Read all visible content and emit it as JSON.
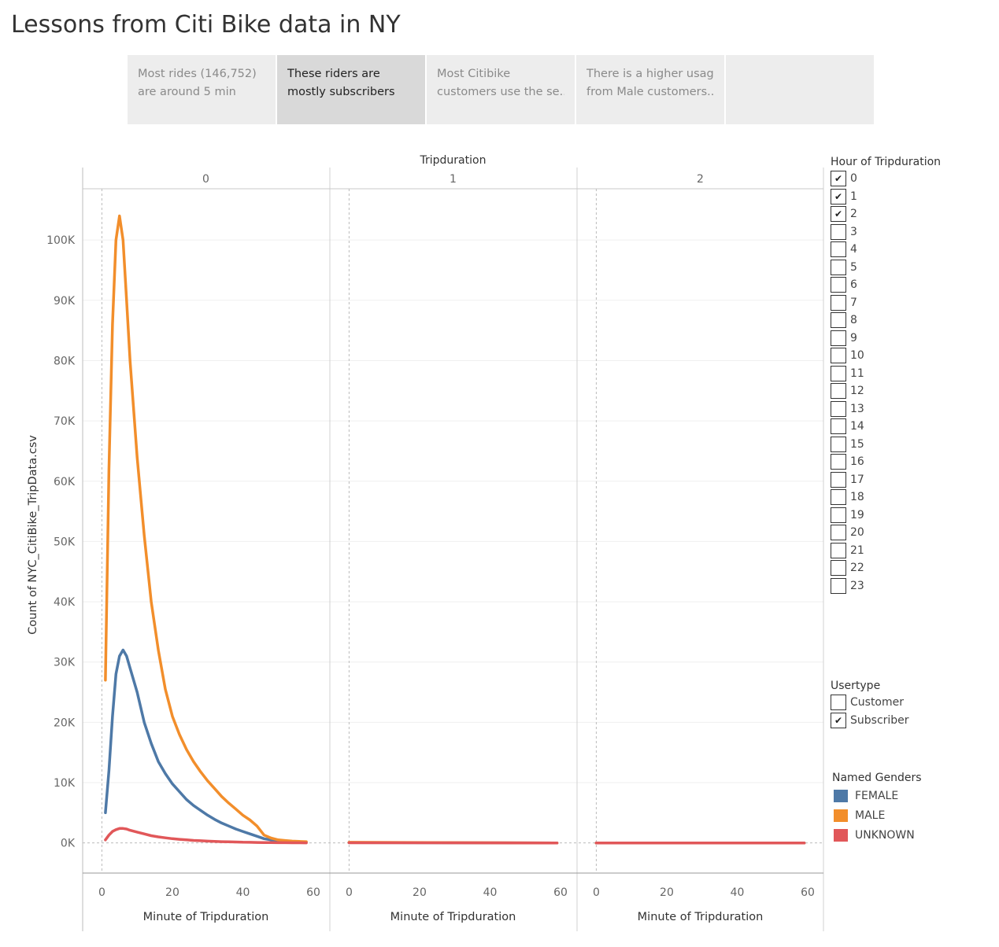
{
  "page": {
    "title": "Lessons from Citi Bike data in NY"
  },
  "story_points": [
    {
      "line1": "Most rides (146,752)",
      "line2": "are around 5 min",
      "active": false
    },
    {
      "line1": "These riders are",
      "line2": "mostly subscribers",
      "active": true
    },
    {
      "line1": "Most Citibike",
      "line2": "customers use the se..",
      "active": false
    },
    {
      "line1": "There is a higher usage",
      "line2": "from Male customers..",
      "active": false
    },
    {
      "line1": "",
      "line2": "",
      "active": false
    }
  ],
  "filters": {
    "hour": {
      "title": "Hour of Tripduration",
      "items": [
        {
          "label": "0",
          "checked": true
        },
        {
          "label": "1",
          "checked": true
        },
        {
          "label": "2",
          "checked": true
        },
        {
          "label": "3",
          "checked": false
        },
        {
          "label": "4",
          "checked": false
        },
        {
          "label": "5",
          "checked": false
        },
        {
          "label": "6",
          "checked": false
        },
        {
          "label": "7",
          "checked": false
        },
        {
          "label": "8",
          "checked": false
        },
        {
          "label": "9",
          "checked": false
        },
        {
          "label": "10",
          "checked": false
        },
        {
          "label": "11",
          "checked": false
        },
        {
          "label": "12",
          "checked": false
        },
        {
          "label": "13",
          "checked": false
        },
        {
          "label": "14",
          "checked": false
        },
        {
          "label": "15",
          "checked": false
        },
        {
          "label": "16",
          "checked": false
        },
        {
          "label": "17",
          "checked": false
        },
        {
          "label": "18",
          "checked": false
        },
        {
          "label": "19",
          "checked": false
        },
        {
          "label": "20",
          "checked": false
        },
        {
          "label": "21",
          "checked": false
        },
        {
          "label": "22",
          "checked": false
        },
        {
          "label": "23",
          "checked": false
        }
      ]
    },
    "usertype": {
      "title": "Usertype",
      "items": [
        {
          "label": "Customer",
          "checked": false
        },
        {
          "label": "Subscriber",
          "checked": true
        }
      ]
    }
  },
  "chart_data": {
    "type": "line",
    "column_header": "Tripduration",
    "panels": [
      "0",
      "1",
      "2"
    ],
    "xlabel": "Minute of Tripduration",
    "ylabel": "Count of NYC_CitiBike_TripData.csv",
    "xlim": [
      -3,
      62
    ],
    "ylim": [
      -5000,
      108500
    ],
    "x_ticks": [
      0,
      20,
      40,
      60
    ],
    "y_ticks": [
      0,
      10000,
      20000,
      30000,
      40000,
      50000,
      60000,
      70000,
      80000,
      90000,
      100000
    ],
    "y_tick_labels": [
      "0K",
      "10K",
      "20K",
      "30K",
      "40K",
      "50K",
      "60K",
      "70K",
      "80K",
      "90K",
      "100K"
    ],
    "legend": {
      "title": "Named Genders",
      "position": "right"
    },
    "series": [
      {
        "name": "FEMALE",
        "color": "#4e79a7",
        "panels": [
          {
            "x": [
              1,
              2,
              3,
              4,
              5,
              6,
              7,
              8,
              10,
              12,
              14,
              16,
              18,
              20,
              22,
              24,
              26,
              28,
              30,
              32,
              34,
              36,
              38,
              40,
              42,
              44,
              46,
              48,
              50,
              52,
              54,
              56,
              58
            ],
            "y": [
              5000,
              12000,
              21000,
              28000,
              31000,
              32000,
              31000,
              29000,
              25000,
              20000,
              16500,
              13500,
              11500,
              9800,
              8500,
              7200,
              6200,
              5400,
              4600,
              3900,
              3300,
              2800,
              2300,
              1900,
              1500,
              1100,
              700,
              500,
              400,
              300,
              200,
              150,
              100
            ]
          },
          {
            "x": [
              0,
              59
            ],
            "y": [
              50,
              0
            ]
          },
          {
            "x": [
              0,
              59
            ],
            "y": [
              0,
              0
            ]
          }
        ]
      },
      {
        "name": "MALE",
        "color": "#f28e2b",
        "panels": [
          {
            "x": [
              1,
              2,
              3,
              4,
              5,
              6,
              7,
              8,
              10,
              12,
              14,
              16,
              18,
              20,
              22,
              24,
              26,
              28,
              30,
              32,
              34,
              36,
              38,
              40,
              42,
              44,
              46,
              48,
              50,
              52,
              54,
              56,
              58
            ],
            "y": [
              27000,
              62000,
              86000,
              100000,
              104000,
              100000,
              90000,
              80000,
              64000,
              51000,
              40000,
              32000,
              25500,
              21000,
              18000,
              15500,
              13500,
              11800,
              10300,
              9000,
              7700,
              6600,
              5600,
              4600,
              3800,
              2800,
              1300,
              800,
              500,
              400,
              300,
              250,
              200
            ]
          },
          {
            "x": [
              0,
              59
            ],
            "y": [
              100,
              0
            ]
          },
          {
            "x": [
              0,
              59
            ],
            "y": [
              0,
              0
            ]
          }
        ]
      },
      {
        "name": "UNKNOWN",
        "color": "#e15759",
        "panels": [
          {
            "x": [
              1,
              2,
              3,
              4,
              5,
              6,
              7,
              8,
              10,
              12,
              14,
              16,
              18,
              20,
              22,
              24,
              26,
              28,
              30,
              32,
              34,
              36,
              38,
              40,
              42,
              44,
              46,
              48,
              50,
              52,
              54,
              56,
              58
            ],
            "y": [
              500,
              1300,
              1900,
              2200,
              2400,
              2400,
              2300,
              2100,
              1800,
              1500,
              1200,
              1000,
              850,
              700,
              600,
              500,
              420,
              360,
              300,
              250,
              210,
              180,
              150,
              120,
              100,
              80,
              60,
              50,
              40,
              30,
              25,
              20,
              15
            ]
          },
          {
            "x": [
              0,
              59
            ],
            "y": [
              20,
              0
            ]
          },
          {
            "x": [
              0,
              59
            ],
            "y": [
              0,
              0
            ]
          }
        ]
      }
    ]
  }
}
